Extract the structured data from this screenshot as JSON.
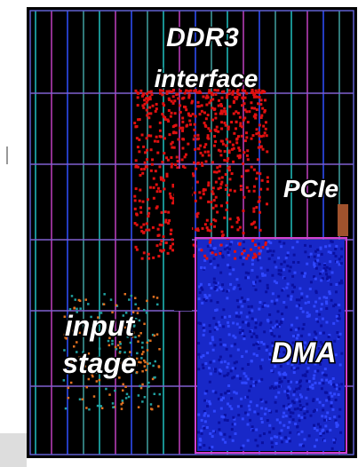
{
  "regions": [
    {
      "lines": [
        "DDR3",
        "interface"
      ]
    },
    {
      "lines": [
        "PCIe"
      ]
    },
    {
      "lines": [
        "input",
        "stage"
      ]
    },
    {
      "lines": [
        "DMA"
      ]
    }
  ]
}
